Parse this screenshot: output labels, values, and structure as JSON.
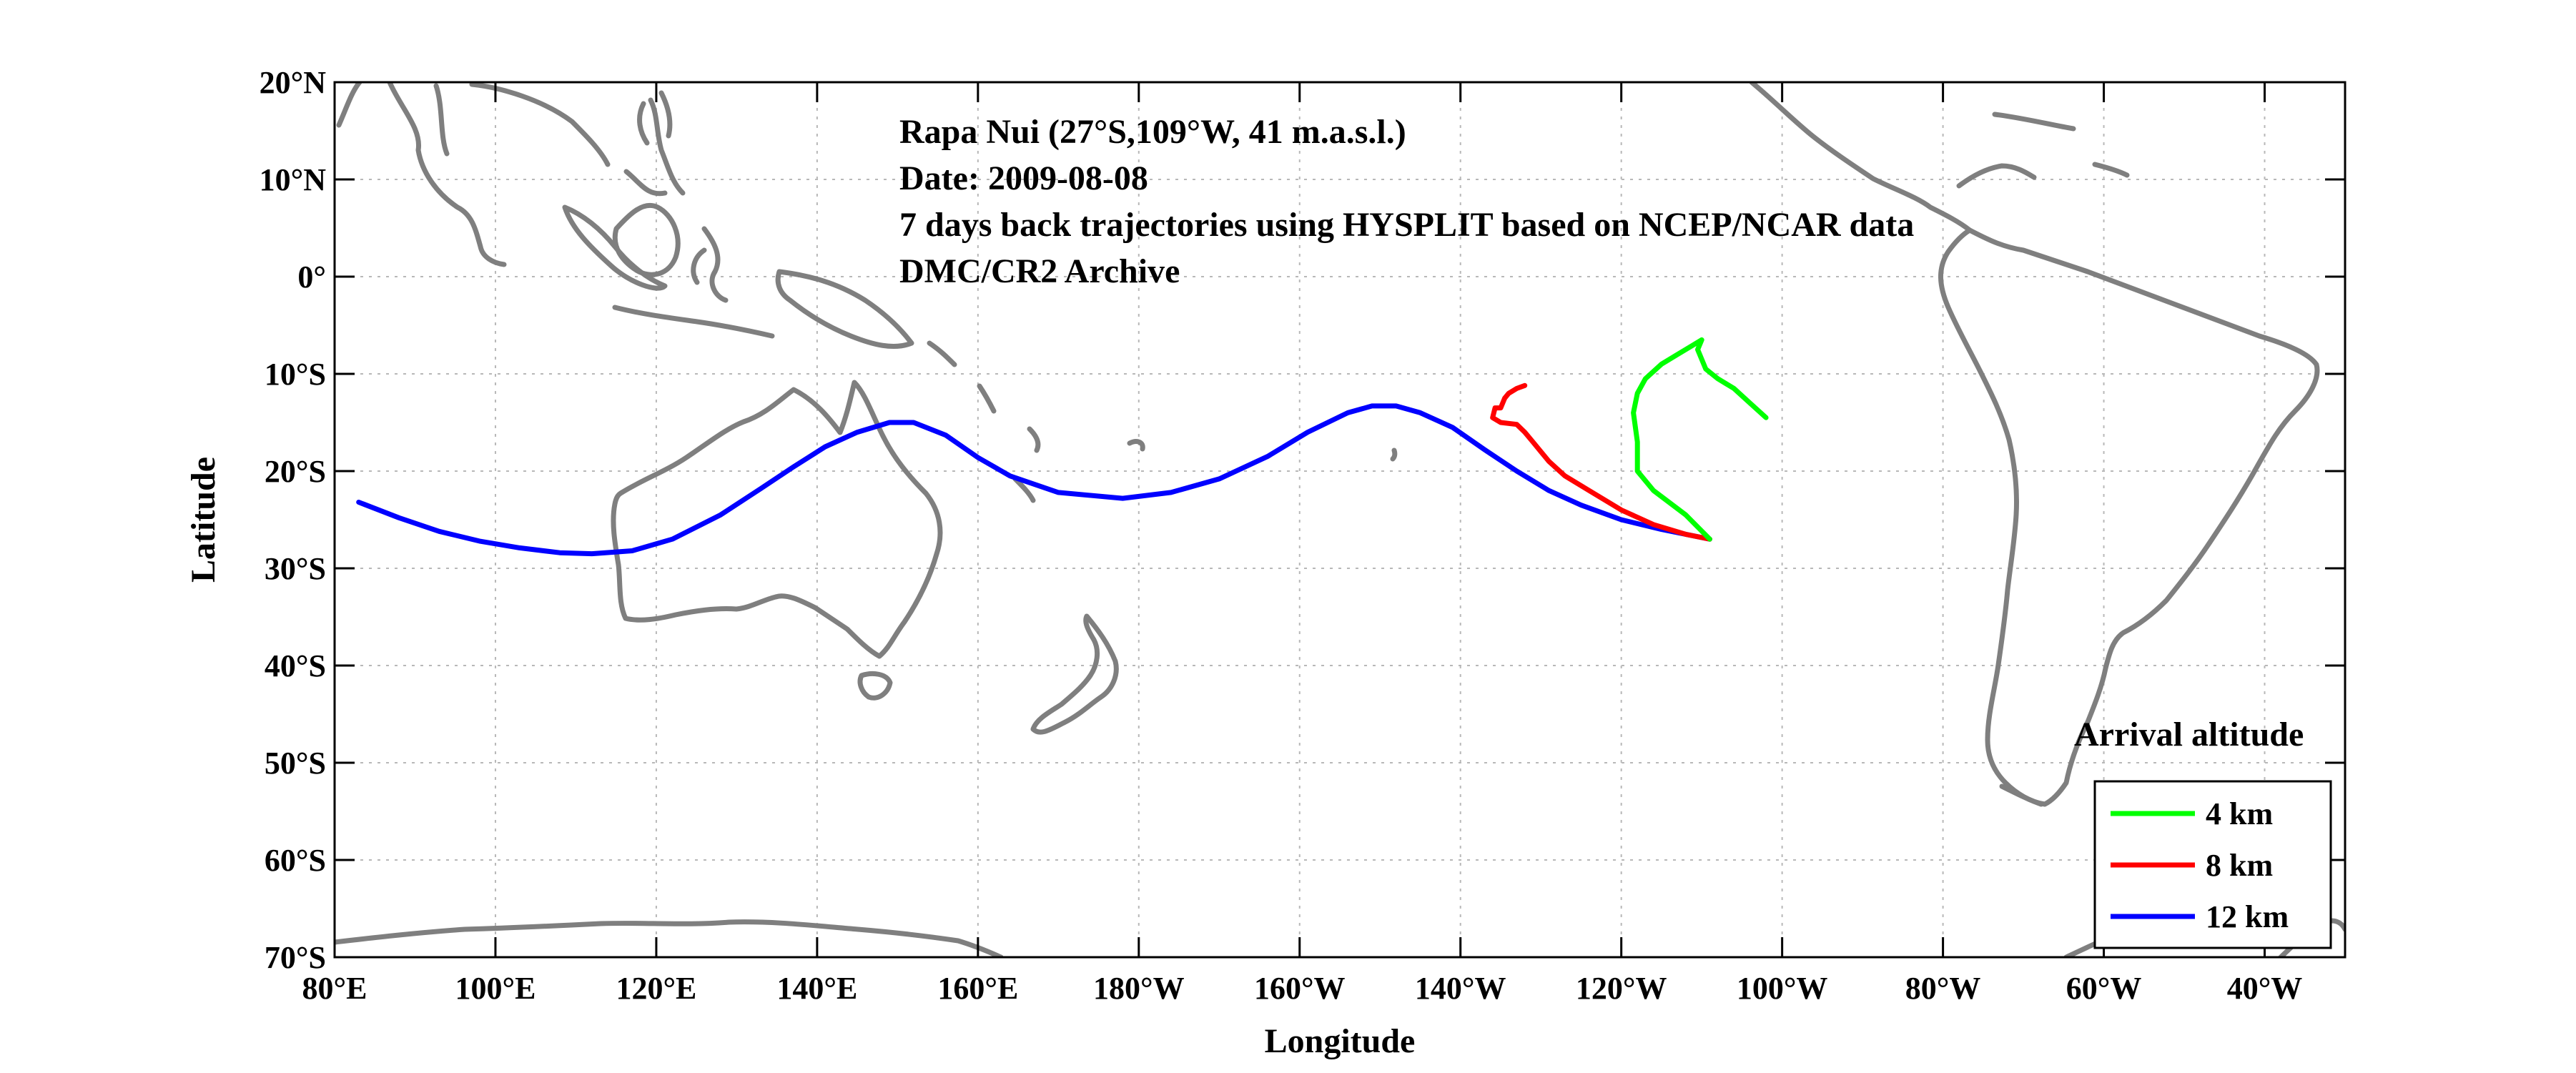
{
  "chart_data": {
    "type": "line",
    "xlabel": "Longitude",
    "ylabel": "Latitude",
    "xlim": [
      80,
      330
    ],
    "ylim": [
      -70,
      20
    ],
    "grid": true,
    "x_ticks": [
      80,
      100,
      120,
      140,
      160,
      180,
      200,
      220,
      240,
      260,
      280,
      300,
      320
    ],
    "x_tick_labels": [
      "80°E",
      "100°E",
      "120°E",
      "140°E",
      "160°E",
      "180°W",
      "160°W",
      "140°W",
      "120°W",
      "100°W",
      "80°W",
      "60°W",
      "40°W"
    ],
    "y_ticks": [
      20,
      10,
      0,
      -10,
      -20,
      -30,
      -40,
      -50,
      -60,
      -70
    ],
    "y_tick_labels": [
      "20°N",
      "10°N",
      "0°",
      "10°S",
      "20°S",
      "30°S",
      "40°S",
      "50°S",
      "60°S",
      "70°S"
    ],
    "annotations": [
      "Rapa Nui (27°S,109°W, 41 m.a.s.l.)",
      "Date: 2009-08-08",
      "7 days back trajectories using HYSPLIT based on NCEP/NCAR data",
      "DMC/CR2 Archive"
    ],
    "legend": {
      "title": "Arrival altitude",
      "position": "bottom-right"
    },
    "series": [
      {
        "name": "4 km",
        "color": "#00ff00",
        "x": [
          251,
          248,
          244,
          242,
          242,
          241.5,
          242,
          243,
          245,
          247,
          249,
          250,
          249.5,
          250.5,
          252,
          254,
          256,
          258
        ],
        "y": [
          -27,
          -24.5,
          -22,
          -20,
          -17,
          -14,
          -12,
          -10.5,
          -9,
          -8,
          -7,
          -6.5,
          -7.5,
          -9.5,
          -10.5,
          -11.5,
          -13,
          -14.5
        ]
      },
      {
        "name": "8 km",
        "color": "#ff0000",
        "x": [
          251,
          248,
          244,
          240,
          236,
          233,
          231,
          229,
          228,
          227,
          225,
          224,
          224.3,
          225,
          225.5,
          226,
          227,
          228
        ],
        "y": [
          -27,
          -26.5,
          -25.5,
          -24,
          -22,
          -20.5,
          -19,
          -17,
          -16,
          -15.2,
          -15,
          -14.5,
          -13.5,
          -13.5,
          -12.5,
          -12,
          -11.5,
          -11.2
        ]
      },
      {
        "name": "12 km",
        "color": "#0000ff",
        "x": [
          251,
          245,
          240,
          235,
          231,
          227,
          223,
          219,
          215,
          212,
          209,
          206,
          201,
          196,
          190,
          184,
          178,
          170,
          164,
          160,
          156,
          152,
          149,
          145,
          141,
          137,
          133,
          128,
          122,
          117,
          112,
          108,
          103,
          98,
          93,
          88,
          83
        ],
        "y": [
          -27,
          -26,
          -25,
          -23.5,
          -22,
          -20,
          -17.8,
          -15.5,
          -14,
          -13.3,
          -13.3,
          -14,
          -16,
          -18.5,
          -20.8,
          -22.2,
          -22.8,
          -22.2,
          -20.5,
          -18.6,
          -16.3,
          -15,
          -15,
          -16,
          -17.5,
          -19.6,
          -21.8,
          -24.5,
          -27,
          -28.2,
          -28.5,
          -28.4,
          -27.9,
          -27.2,
          -26.2,
          -24.8,
          -23.2
        ]
      }
    ]
  }
}
